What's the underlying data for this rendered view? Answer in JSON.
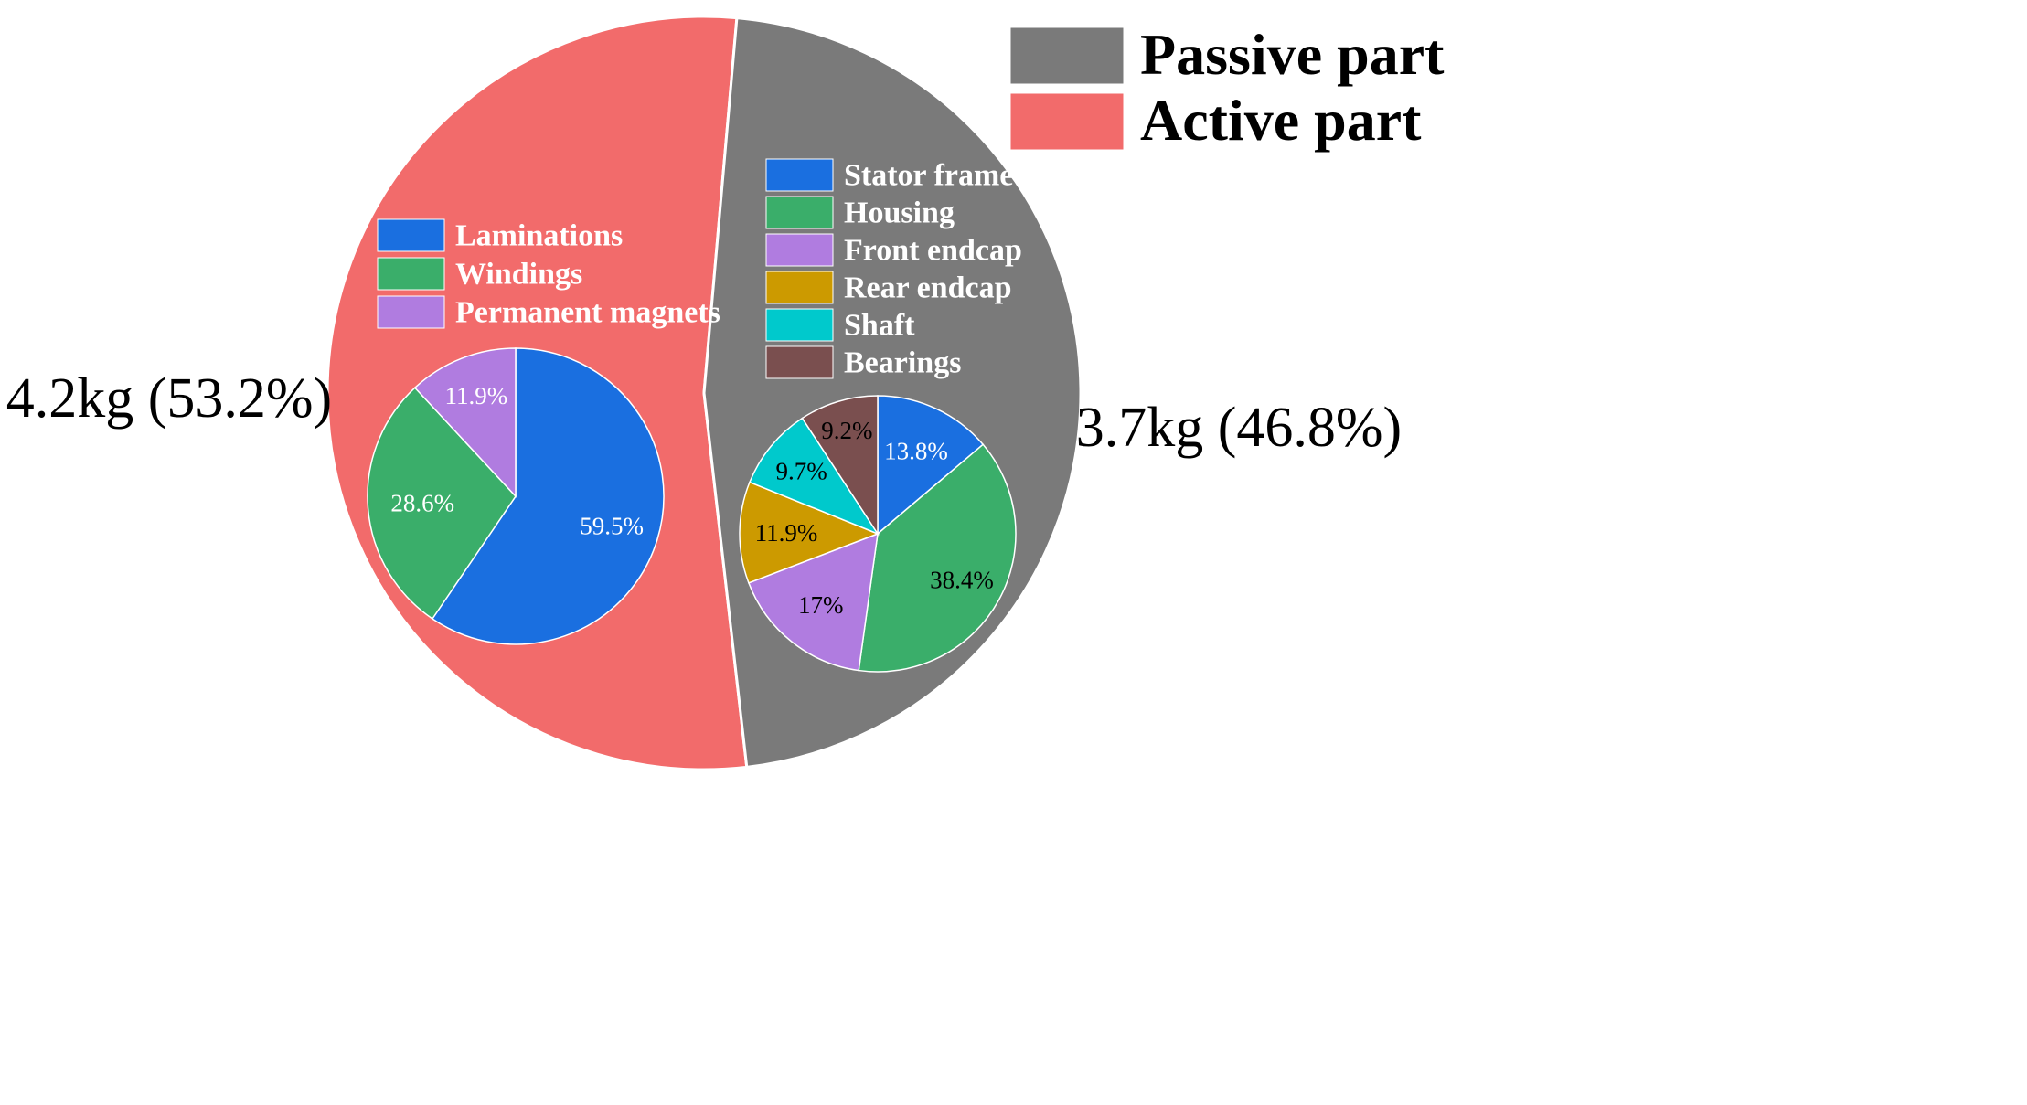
{
  "chart_data": [
    {
      "type": "pie",
      "title": "",
      "series": [
        {
          "name": "Active part",
          "label": "4.2kg (53.2%)",
          "value": 53.2,
          "color": "#f26b6b"
        },
        {
          "name": "Passive part",
          "label": "3.7kg (46.8%)",
          "value": 46.8,
          "color": "#7a7a7a"
        }
      ],
      "legend": {
        "position": "top-right",
        "entries": [
          "Passive part",
          "Active part"
        ]
      }
    },
    {
      "type": "pie",
      "title": "",
      "series": [
        {
          "name": "Laminations",
          "value": 59.5,
          "label": "59.5%",
          "color": "#1a6fe0"
        },
        {
          "name": "Windings",
          "value": 28.6,
          "label": "28.6%",
          "color": "#3aae6a"
        },
        {
          "name": "Permanent magnets",
          "value": 11.9,
          "label": "11.9%",
          "color": "#b07ce0"
        }
      ],
      "legend": {
        "position": "top-left",
        "entries": [
          "Laminations",
          "Windings",
          "Permanent magnets"
        ]
      }
    },
    {
      "type": "pie",
      "title": "",
      "series": [
        {
          "name": "Stator frame",
          "value": 13.8,
          "label": "13.8%",
          "color": "#1a6fe0"
        },
        {
          "name": "Housing",
          "value": 38.4,
          "label": "38.4%",
          "color": "#3aae6a"
        },
        {
          "name": "Front endcap",
          "value": 17,
          "label": "17%",
          "color": "#b07ce0"
        },
        {
          "name": "Rear endcap",
          "value": 11.9,
          "label": "11.9%",
          "color": "#cc9a00"
        },
        {
          "name": "Shaft",
          "value": 9.7,
          "label": "9.7%",
          "color": "#00c9cc"
        },
        {
          "name": "Bearings",
          "value": 9.2,
          "label": "9.2%",
          "color": "#7a4f4f"
        }
      ],
      "legend": {
        "position": "top-right",
        "entries": [
          "Stator frame",
          "Housing",
          "Front endcap",
          "Rear endcap",
          "Shaft",
          "Bearings"
        ]
      }
    }
  ]
}
